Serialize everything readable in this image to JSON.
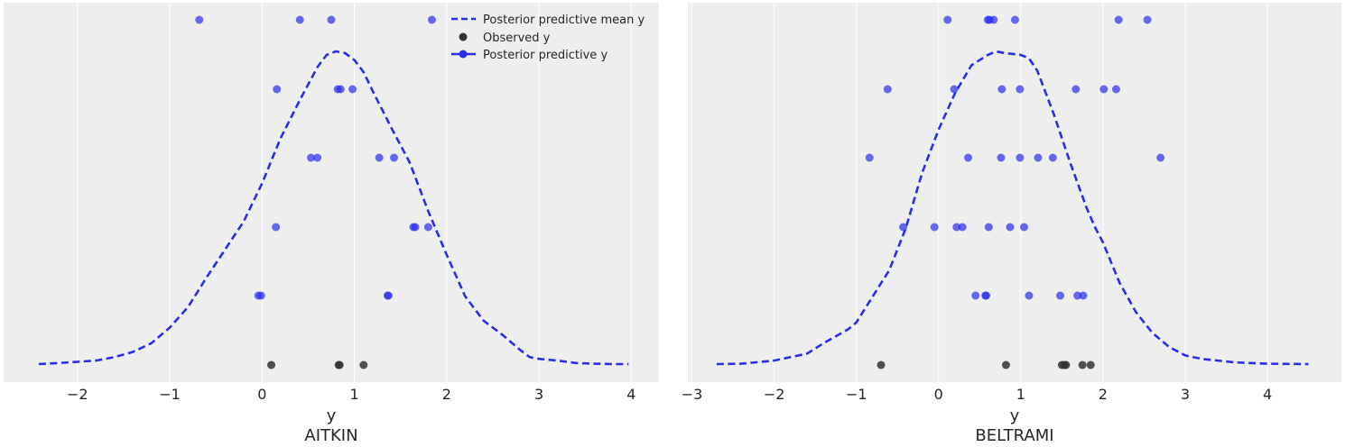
{
  "chart_data": [
    {
      "type": "scatter",
      "xlabel": "y",
      "title": "AITKIN",
      "xlim": [
        -2.8,
        4.3
      ],
      "xticks": [
        -2,
        -1,
        0,
        1,
        2,
        3,
        4
      ],
      "xtick_labels": [
        "−2",
        "−1",
        "0",
        "1",
        "2",
        "3",
        "4"
      ],
      "grid": true,
      "legend": {
        "placement": "top-right",
        "entries": [
          {
            "label": "Posterior predictive mean y",
            "style": "dashed-line"
          },
          {
            "label": "Observed y",
            "style": "marker"
          },
          {
            "label": "Posterior predictive y",
            "style": "line-marker"
          }
        ]
      },
      "mean_curve": {
        "name": "Posterior predictive mean y",
        "x": [
          -2.42,
          -2.2,
          -1.8,
          -1.6,
          -1.4,
          -1.2,
          -1.0,
          -0.8,
          -0.6,
          -0.4,
          -0.2,
          0.0,
          0.2,
          0.4,
          0.6,
          0.7,
          0.8,
          0.9,
          1.0,
          1.1,
          1.2,
          1.4,
          1.6,
          1.8,
          2.0,
          2.2,
          2.4,
          2.6,
          2.8,
          2.9,
          3.0,
          3.2,
          3.4,
          3.6,
          3.8,
          3.97
        ],
        "y": [
          0.0,
          0.003,
          0.01,
          0.02,
          0.035,
          0.06,
          0.105,
          0.165,
          0.25,
          0.33,
          0.41,
          0.52,
          0.65,
          0.755,
          0.855,
          0.89,
          0.9,
          0.895,
          0.875,
          0.84,
          0.785,
          0.68,
          0.58,
          0.44,
          0.315,
          0.195,
          0.125,
          0.085,
          0.04,
          0.02,
          0.015,
          0.01,
          0.003,
          0.001,
          0.0,
          0.0
        ],
        "color": "#2a2eec"
      },
      "observed": {
        "name": "Observed y",
        "x": [
          0.1,
          0.83,
          0.84,
          1.1
        ],
        "color": "#333333"
      },
      "posterior_predictive": {
        "name": "Posterior predictive y",
        "color": "#2a2eec",
        "rows": [
          [
            -0.68,
            0.41,
            0.75,
            1.84
          ],
          [
            0.16,
            0.82,
            0.85,
            0.98
          ],
          [
            0.53,
            0.6,
            1.27,
            1.43
          ],
          [
            0.15,
            1.64,
            1.66,
            1.8
          ],
          [
            -0.04,
            -0.01,
            1.36,
            1.37
          ]
        ]
      }
    },
    {
      "type": "scatter",
      "xlabel": "y",
      "title": "BELTRAMI",
      "xlim": [
        -3.05,
        4.9
      ],
      "xticks": [
        -3,
        -2,
        -1,
        0,
        1,
        2,
        3,
        4
      ],
      "xtick_labels": [
        "−3",
        "−2",
        "−1",
        "0",
        "1",
        "2",
        "3",
        "4"
      ],
      "grid": true,
      "mean_curve": {
        "name": "Posterior predictive mean y",
        "x": [
          -2.7,
          -2.4,
          -2.0,
          -1.6,
          -1.4,
          -1.1,
          -1.0,
          -0.8,
          -0.6,
          -0.4,
          -0.2,
          0.0,
          0.2,
          0.4,
          0.6,
          0.7,
          0.8,
          1.0,
          1.1,
          1.2,
          1.4,
          1.6,
          1.8,
          1.9,
          2.0,
          2.2,
          2.4,
          2.6,
          2.8,
          3.0,
          3.2,
          3.6,
          4.0,
          4.5
        ],
        "y": [
          0.0,
          0.001,
          0.01,
          0.03,
          0.06,
          0.1,
          0.12,
          0.195,
          0.27,
          0.39,
          0.55,
          0.675,
          0.78,
          0.86,
          0.89,
          0.9,
          0.895,
          0.89,
          0.88,
          0.845,
          0.72,
          0.58,
          0.45,
          0.395,
          0.35,
          0.235,
          0.15,
          0.09,
          0.05,
          0.025,
          0.015,
          0.005,
          0.001,
          0.0
        ],
        "color": "#2a2eec"
      },
      "observed": {
        "name": "Observed y",
        "x": [
          -0.7,
          0.82,
          1.5,
          1.53,
          1.55,
          1.75,
          1.85
        ],
        "color": "#333333"
      },
      "posterior_predictive": {
        "name": "Posterior predictive y",
        "color": "#2a2eec",
        "rows": [
          [
            0.11,
            0.6,
            0.62,
            0.67,
            0.93,
            2.19,
            2.54
          ],
          [
            -0.62,
            0.19,
            0.77,
            0.99,
            1.67,
            2.01,
            2.16
          ],
          [
            -0.84,
            0.36,
            0.76,
            0.99,
            1.21,
            1.39,
            2.7
          ],
          [
            -0.43,
            -0.05,
            0.22,
            0.29,
            0.61,
            0.87,
            1.04
          ],
          [
            0.45,
            0.57,
            0.58,
            1.1,
            1.48,
            1.69,
            1.76
          ]
        ]
      }
    }
  ]
}
